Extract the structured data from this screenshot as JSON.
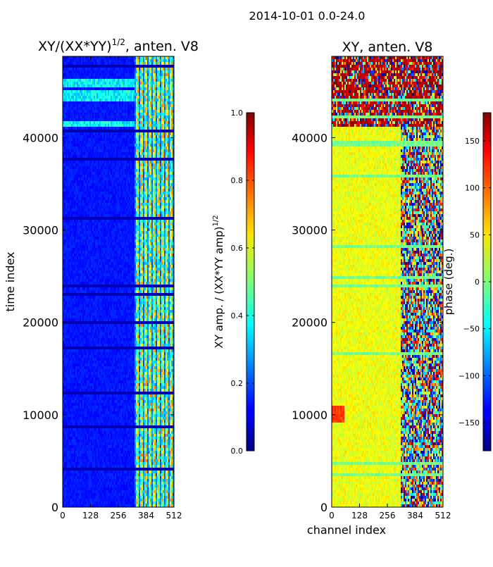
{
  "figure": {
    "suptitle": "2014-10-01 0.0-24.0"
  },
  "chart_data": [
    {
      "type": "heatmap",
      "title_text": "XY/(XX*YY)",
      "title_exp": "1/2",
      "title_suffix": ", anten. V8",
      "xlabel": "",
      "ylabel": "time index",
      "xlim": [
        0,
        512
      ],
      "ylim": [
        0,
        48800
      ],
      "x_ticks": [
        0,
        128,
        256,
        384,
        512
      ],
      "y_ticks": [
        0,
        10000,
        20000,
        30000,
        40000
      ],
      "colorscale": "jet",
      "features": {
        "bright_channel_band": [
          330,
          512
        ],
        "bright_time_bands": [
          [
            41300,
            41800
          ],
          [
            43900,
            45000
          ],
          [
            45400,
            46300
          ]
        ]
      },
      "colorbar": {
        "label_text": "XY amp. / (XX*YY amp)",
        "label_exp": "1/2",
        "range": [
          0.0,
          1.0
        ],
        "ticks": [
          0.0,
          0.2,
          0.4,
          0.6,
          0.8,
          1.0
        ],
        "tick_labels": [
          "0.0",
          "0.2",
          "0.4",
          "0.6",
          "0.8",
          "1.0"
        ]
      }
    },
    {
      "type": "heatmap",
      "title": "XY, anten. V8",
      "xlabel": "channel index",
      "ylabel": "",
      "xlim": [
        0,
        512
      ],
      "ylim": [
        0,
        48800
      ],
      "x_ticks": [
        0,
        128,
        256,
        384,
        512
      ],
      "y_ticks": [
        0,
        10000,
        20000,
        30000,
        40000
      ],
      "colorscale": "jet",
      "features": {
        "mixed_phase_channel_band": [
          320,
          512
        ],
        "mixed_phase_time_band": [
          41300,
          48800
        ]
      },
      "colorbar": {
        "label": "phase (deg.)",
        "range": [
          -180,
          180
        ],
        "ticks": [
          -150,
          -100,
          -50,
          0,
          50,
          100,
          150
        ],
        "tick_labels": [
          "−150",
          "−100",
          "−50",
          "0",
          "50",
          "100",
          "150"
        ]
      }
    }
  ]
}
